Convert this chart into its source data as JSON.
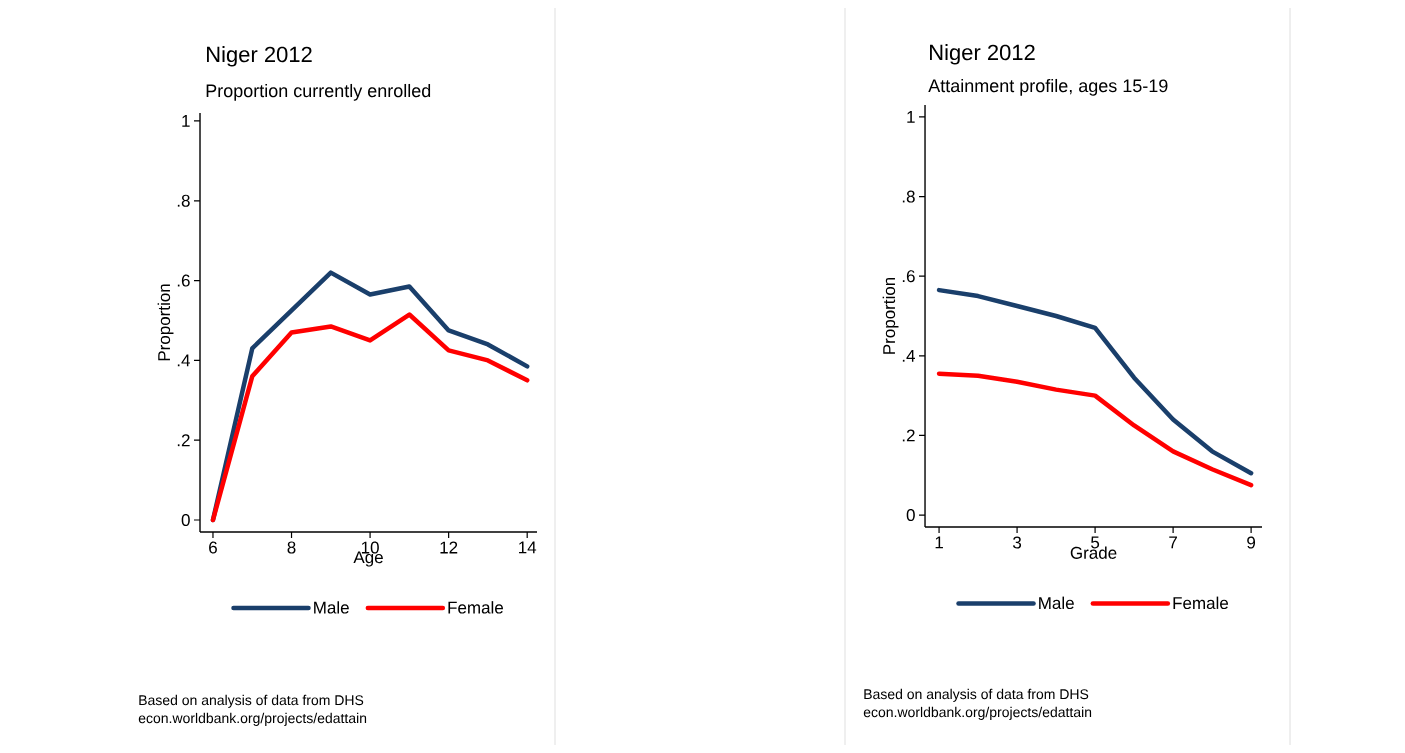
{
  "chart_data": [
    {
      "type": "line",
      "title": "Niger 2012",
      "subtitle": "Proportion currently enrolled",
      "xlabel": "Age",
      "ylabel": "Proportion",
      "x": [
        6,
        7,
        8,
        9,
        10,
        11,
        12,
        13,
        14
      ],
      "series": [
        {
          "name": "Male",
          "color": "#1a3f6b",
          "values": [
            0.0,
            0.43,
            0.525,
            0.62,
            0.565,
            0.585,
            0.475,
            0.44,
            0.385
          ]
        },
        {
          "name": "Female",
          "color": "#ff0000",
          "values": [
            0.0,
            0.36,
            0.47,
            0.485,
            0.45,
            0.515,
            0.425,
            0.4,
            0.35
          ]
        }
      ],
      "xlim": [
        5.67,
        14.25
      ],
      "ylim": [
        -0.03,
        1.02
      ],
      "xticks": [
        6,
        8,
        10,
        12,
        14
      ],
      "yticks": [
        0,
        {
          "value": 0.2,
          "label": ".2"
        },
        {
          "value": 0.4,
          "label": ".4"
        },
        {
          "value": 0.6,
          "label": ".6"
        },
        {
          "value": 0.8,
          "label": ".8"
        },
        1
      ],
      "legend": "bottom",
      "annotations": [
        "Based on analysis of data from DHS",
        "econ.worldbank.org/projects/edattain"
      ]
    },
    {
      "type": "line",
      "title": "Niger 2012",
      "subtitle": "Attainment profile, ages 15-19",
      "xlabel": "Grade",
      "ylabel": "Proportion",
      "x": [
        1,
        2,
        3,
        4,
        5,
        6,
        7,
        8,
        9
      ],
      "series": [
        {
          "name": "Male",
          "color": "#1a3f6b",
          "values": [
            0.565,
            0.55,
            0.525,
            0.5,
            0.47,
            0.345,
            0.24,
            0.16,
            0.105
          ]
        },
        {
          "name": "Female",
          "color": "#ff0000",
          "values": [
            0.355,
            0.35,
            0.335,
            0.315,
            0.3,
            0.225,
            0.16,
            0.115,
            0.075
          ]
        }
      ],
      "xlim": [
        0.64,
        9.28
      ],
      "ylim": [
        -0.03,
        1.03
      ],
      "xticks": [
        1,
        3,
        5,
        7,
        9
      ],
      "yticks": [
        0,
        {
          "value": 0.2,
          "label": ".2"
        },
        {
          "value": 0.4,
          "label": ".4"
        },
        {
          "value": 0.6,
          "label": ".6"
        },
        {
          "value": 0.8,
          "label": ".8"
        },
        1
      ],
      "legend": "bottom",
      "annotations": [
        "Based on analysis of data from DHS",
        "econ.worldbank.org/projects/edattain"
      ]
    }
  ]
}
